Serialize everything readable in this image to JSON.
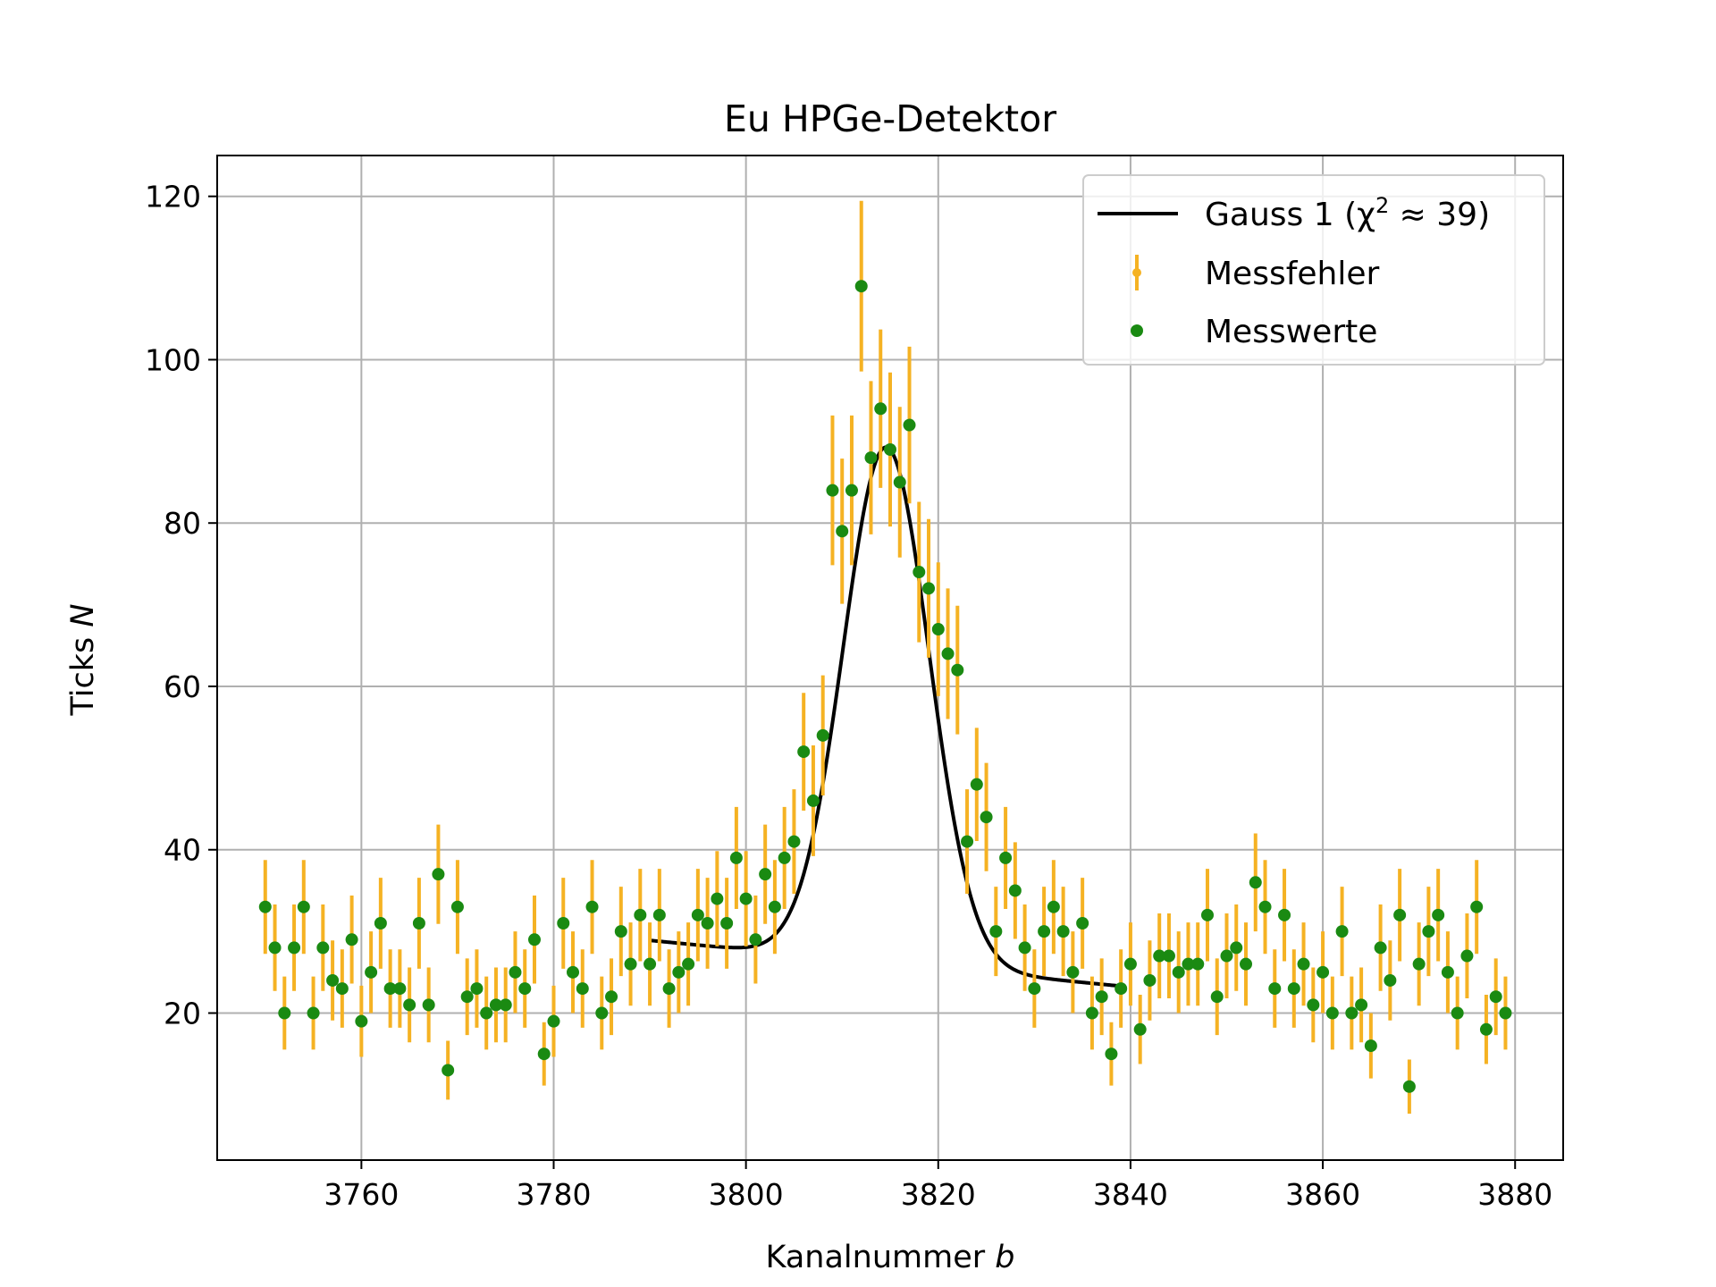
{
  "chart_data": {
    "type": "scatter",
    "title": "Eu HPGe-Detektor",
    "xlabel": "Kanalnummer",
    "xlabel_var": "b",
    "ylabel": "Ticks",
    "ylabel_var": "N",
    "xlim": [
      3745,
      3885
    ],
    "ylim": [
      2,
      125
    ],
    "xticks": [
      3760,
      3780,
      3800,
      3820,
      3840,
      3860,
      3880
    ],
    "yticks": [
      20,
      40,
      60,
      80,
      100,
      120
    ],
    "grid": true,
    "legend_position": "top-right",
    "colors": {
      "fit": "#000000",
      "error": "#f5b223",
      "points": "#1a8a12"
    },
    "series": [
      {
        "name": "Gauss 1",
        "legend_math": "(χ",
        "legend_sup": "2",
        "legend_tail": " ≈ 39)",
        "kind": "line",
        "model": {
          "amplitude": 63.2,
          "mean": 3814.6,
          "sigma": 4.47,
          "baseline_start": 28.9,
          "baseline_end": 23.3,
          "x_min": 3790,
          "x_max": 3839
        }
      },
      {
        "name": "Messfehler",
        "kind": "errorbar"
      },
      {
        "name": "Messwerte",
        "kind": "points",
        "x": [
          3750,
          3751,
          3752,
          3753,
          3754,
          3755,
          3756,
          3757,
          3758,
          3759,
          3760,
          3761,
          3762,
          3763,
          3764,
          3765,
          3766,
          3767,
          3768,
          3769,
          3770,
          3771,
          3772,
          3773,
          3774,
          3775,
          3776,
          3777,
          3778,
          3779,
          3780,
          3781,
          3782,
          3783,
          3784,
          3785,
          3786,
          3787,
          3788,
          3789,
          3790,
          3791,
          3792,
          3793,
          3794,
          3795,
          3796,
          3797,
          3798,
          3799,
          3800,
          3801,
          3802,
          3803,
          3804,
          3805,
          3806,
          3807,
          3808,
          3809,
          3810,
          3811,
          3812,
          3813,
          3814,
          3815,
          3816,
          3817,
          3818,
          3819,
          3820,
          3821,
          3822,
          3823,
          3824,
          3825,
          3826,
          3827,
          3828,
          3829,
          3830,
          3831,
          3832,
          3833,
          3834,
          3835,
          3836,
          3837,
          3838,
          3839,
          3840,
          3841,
          3842,
          3843,
          3844,
          3845,
          3846,
          3847,
          3848,
          3849,
          3850,
          3851,
          3852,
          3853,
          3854,
          3855,
          3856,
          3857,
          3858,
          3859,
          3860,
          3861,
          3862,
          3863,
          3864,
          3865,
          3866,
          3867,
          3868,
          3869,
          3870,
          3871,
          3872,
          3873,
          3874,
          3875,
          3876,
          3877,
          3878,
          3879
        ],
        "y": [
          33,
          28,
          20,
          28,
          33,
          20,
          28,
          24,
          23,
          29,
          19,
          25,
          31,
          23,
          23,
          21,
          31,
          21,
          37,
          13,
          33,
          22,
          23,
          20,
          21,
          21,
          25,
          23,
          29,
          15,
          19,
          31,
          25,
          23,
          33,
          20,
          22,
          30,
          26,
          32,
          26,
          32,
          23,
          25,
          26,
          32,
          31,
          34,
          31,
          39,
          34,
          29,
          37,
          33,
          39,
          41,
          52,
          46,
          54,
          84,
          79,
          84,
          109,
          88,
          94,
          89,
          85,
          92,
          74,
          72,
          67,
          64,
          62,
          41,
          48,
          44,
          30,
          39,
          35,
          28,
          23,
          30,
          33,
          30,
          25,
          31,
          20,
          22,
          15,
          23,
          26,
          18,
          24,
          27,
          27,
          25,
          26,
          26,
          32,
          22,
          27,
          28,
          26,
          36,
          33,
          23,
          32,
          23,
          26,
          21,
          25,
          20,
          30,
          20,
          21,
          16,
          28,
          24,
          32,
          11,
          26,
          30,
          32,
          25,
          20,
          27,
          33,
          18,
          22,
          20
        ]
      }
    ]
  }
}
